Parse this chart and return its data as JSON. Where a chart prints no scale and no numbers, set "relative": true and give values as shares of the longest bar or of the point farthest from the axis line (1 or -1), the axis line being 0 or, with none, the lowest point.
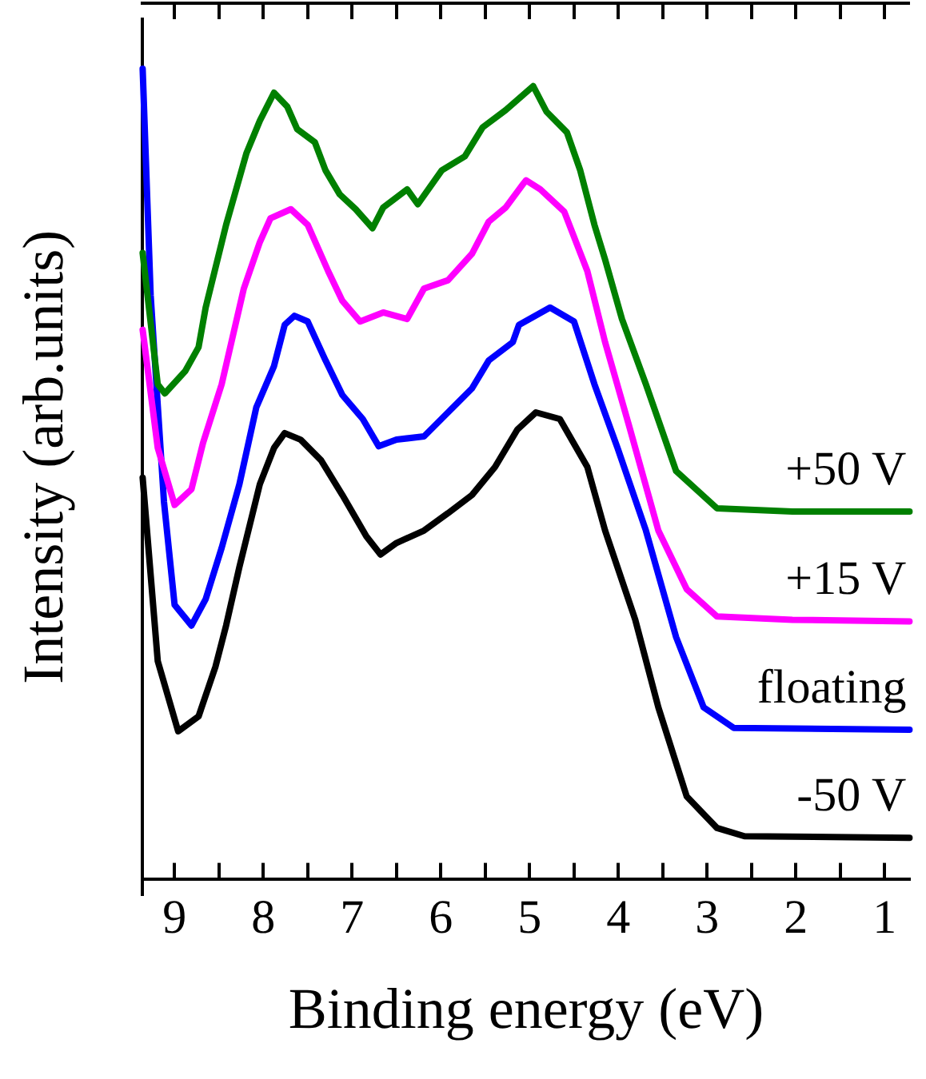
{
  "chart_data": {
    "type": "line",
    "relative": true,
    "xlabel": "Binding energy (eV)",
    "ylabel": "Intensity (arb.units)",
    "legend": false,
    "marker": "none",
    "line_style": "solid",
    "grid": false,
    "xlim": [
      9.36,
      0.72
    ],
    "xticks": [
      9,
      {
        "value": 8.5,
        "label": null
      },
      8,
      {
        "value": 7.5,
        "label": null
      },
      7,
      {
        "value": 6.5,
        "label": null
      },
      6,
      {
        "value": 5.5,
        "label": null
      },
      5,
      {
        "value": 4.5,
        "label": null
      },
      4,
      {
        "value": 3.5,
        "label": null
      },
      3,
      {
        "value": 2.5,
        "label": null
      },
      2,
      {
        "value": 1.5,
        "label": null
      },
      1
    ],
    "series": [
      {
        "name": "+50 V",
        "color": "#008000",
        "x": [
          9.36,
          9.19,
          9.11,
          8.88,
          8.73,
          8.65,
          8.42,
          8.19,
          8.04,
          7.88,
          7.73,
          7.62,
          7.42,
          7.3,
          7.14,
          6.96,
          6.77,
          6.65,
          6.38,
          6.26,
          5.99,
          5.73,
          5.53,
          5.27,
          4.96,
          4.81,
          4.58,
          4.43,
          4.27,
          4.15,
          3.96,
          3.69,
          3.35,
          2.89,
          2.04,
          0.72
        ],
        "values": [
          0.777,
          0.618,
          0.607,
          0.634,
          0.663,
          0.711,
          0.811,
          0.898,
          0.937,
          0.971,
          0.954,
          0.927,
          0.911,
          0.877,
          0.848,
          0.83,
          0.807,
          0.832,
          0.854,
          0.836,
          0.877,
          0.894,
          0.929,
          0.95,
          0.979,
          0.948,
          0.923,
          0.877,
          0.811,
          0.769,
          0.697,
          0.618,
          0.513,
          0.468,
          0.464,
          0.464
        ]
      },
      {
        "name": "+15 V",
        "color": "#ff00ff",
        "x": [
          9.36,
          9.19,
          9.0,
          8.81,
          8.68,
          8.47,
          8.22,
          8.04,
          7.92,
          7.69,
          7.5,
          7.27,
          7.11,
          6.91,
          6.65,
          6.38,
          6.19,
          5.92,
          5.65,
          5.46,
          5.27,
          5.07,
          5.04,
          4.88,
          4.61,
          4.35,
          4.15,
          3.88,
          3.55,
          3.23,
          2.89,
          2.04,
          0.72
        ],
        "values": [
          0.684,
          0.541,
          0.472,
          0.491,
          0.547,
          0.618,
          0.734,
          0.79,
          0.819,
          0.83,
          0.811,
          0.755,
          0.719,
          0.694,
          0.705,
          0.697,
          0.734,
          0.744,
          0.776,
          0.815,
          0.832,
          0.861,
          0.865,
          0.854,
          0.827,
          0.755,
          0.669,
          0.568,
          0.441,
          0.37,
          0.337,
          0.333,
          0.331
        ]
      },
      {
        "name": "floating",
        "color": "#0000ff",
        "x": [
          9.36,
          9.27,
          9.12,
          9.0,
          8.81,
          8.65,
          8.47,
          8.27,
          8.08,
          7.88,
          7.76,
          7.65,
          7.5,
          7.3,
          7.11,
          6.88,
          6.7,
          6.5,
          6.19,
          5.92,
          5.65,
          5.46,
          5.19,
          5.12,
          4.77,
          4.5,
          4.27,
          4.01,
          3.69,
          3.35,
          3.04,
          2.7,
          0.72
        ],
        "values": [
          1.0,
          0.726,
          0.476,
          0.351,
          0.326,
          0.358,
          0.42,
          0.497,
          0.59,
          0.64,
          0.69,
          0.701,
          0.694,
          0.647,
          0.605,
          0.576,
          0.543,
          0.551,
          0.555,
          0.584,
          0.613,
          0.647,
          0.669,
          0.69,
          0.711,
          0.694,
          0.618,
          0.541,
          0.441,
          0.312,
          0.227,
          0.202,
          0.2
        ]
      },
      {
        "name": "-50 V",
        "color": "#000000",
        "x": [
          9.36,
          9.19,
          8.96,
          8.73,
          8.54,
          8.42,
          8.27,
          8.04,
          7.88,
          7.76,
          7.58,
          7.35,
          7.11,
          6.84,
          6.68,
          6.5,
          6.19,
          5.92,
          5.65,
          5.39,
          5.14,
          4.93,
          4.66,
          4.35,
          4.15,
          3.81,
          3.55,
          3.23,
          2.89,
          2.58,
          0.72
        ],
        "values": [
          0.505,
          0.283,
          0.198,
          0.216,
          0.276,
          0.326,
          0.397,
          0.497,
          0.541,
          0.559,
          0.551,
          0.526,
          0.484,
          0.434,
          0.412,
          0.426,
          0.441,
          0.462,
          0.484,
          0.518,
          0.563,
          0.584,
          0.576,
          0.518,
          0.441,
          0.333,
          0.227,
          0.119,
          0.081,
          0.071,
          0.069
        ]
      }
    ]
  }
}
